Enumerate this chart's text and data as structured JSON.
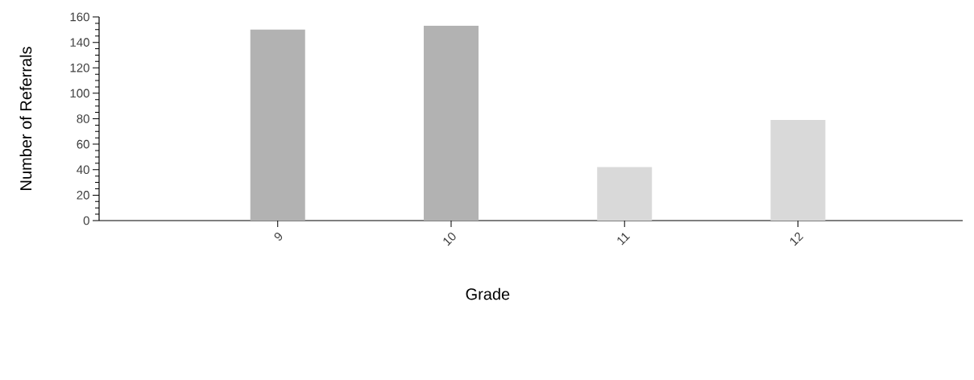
{
  "chart_data": {
    "type": "bar",
    "xlabel": "Grade",
    "ylabel": "Number of Referrals",
    "categories": [
      "9",
      "10",
      "11",
      "12"
    ],
    "values": [
      150,
      153,
      42,
      79
    ],
    "colors": [
      "#b2b2b2",
      "#b2b2b2",
      "#d9d9d9",
      "#d9d9d9"
    ],
    "ylim": [
      0,
      160
    ],
    "yticks": [
      0,
      20,
      40,
      60,
      80,
      100,
      120,
      140,
      160
    ]
  }
}
